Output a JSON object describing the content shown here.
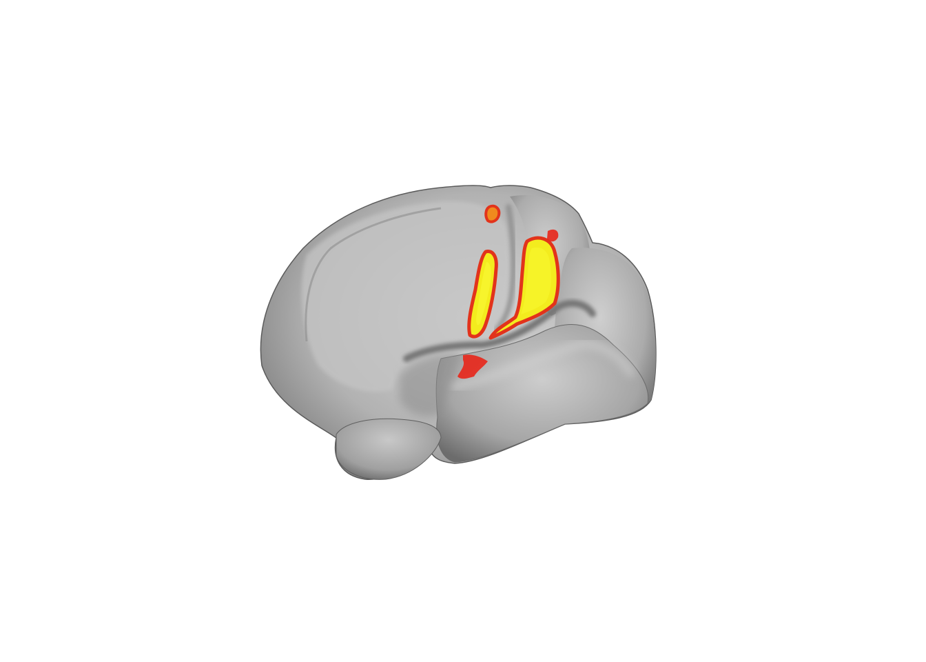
{
  "scene": {
    "background_color": "#ffffff",
    "surface_color": "#bdbdbd",
    "surface_shadow_color": "#6e6e6e",
    "surface_highlight_color": "#d6d6d6",
    "activation_high_color": "#f5f020",
    "activation_low_color": "#e8261a",
    "object": "brain-surface-lateral-left-hemisphere",
    "activation_clusters": [
      {
        "name": "precentral-cluster",
        "level": "high"
      },
      {
        "name": "postcentral-cluster",
        "level": "high"
      },
      {
        "name": "superior-focus",
        "level": "low"
      },
      {
        "name": "opercular-focus",
        "level": "low"
      }
    ]
  }
}
